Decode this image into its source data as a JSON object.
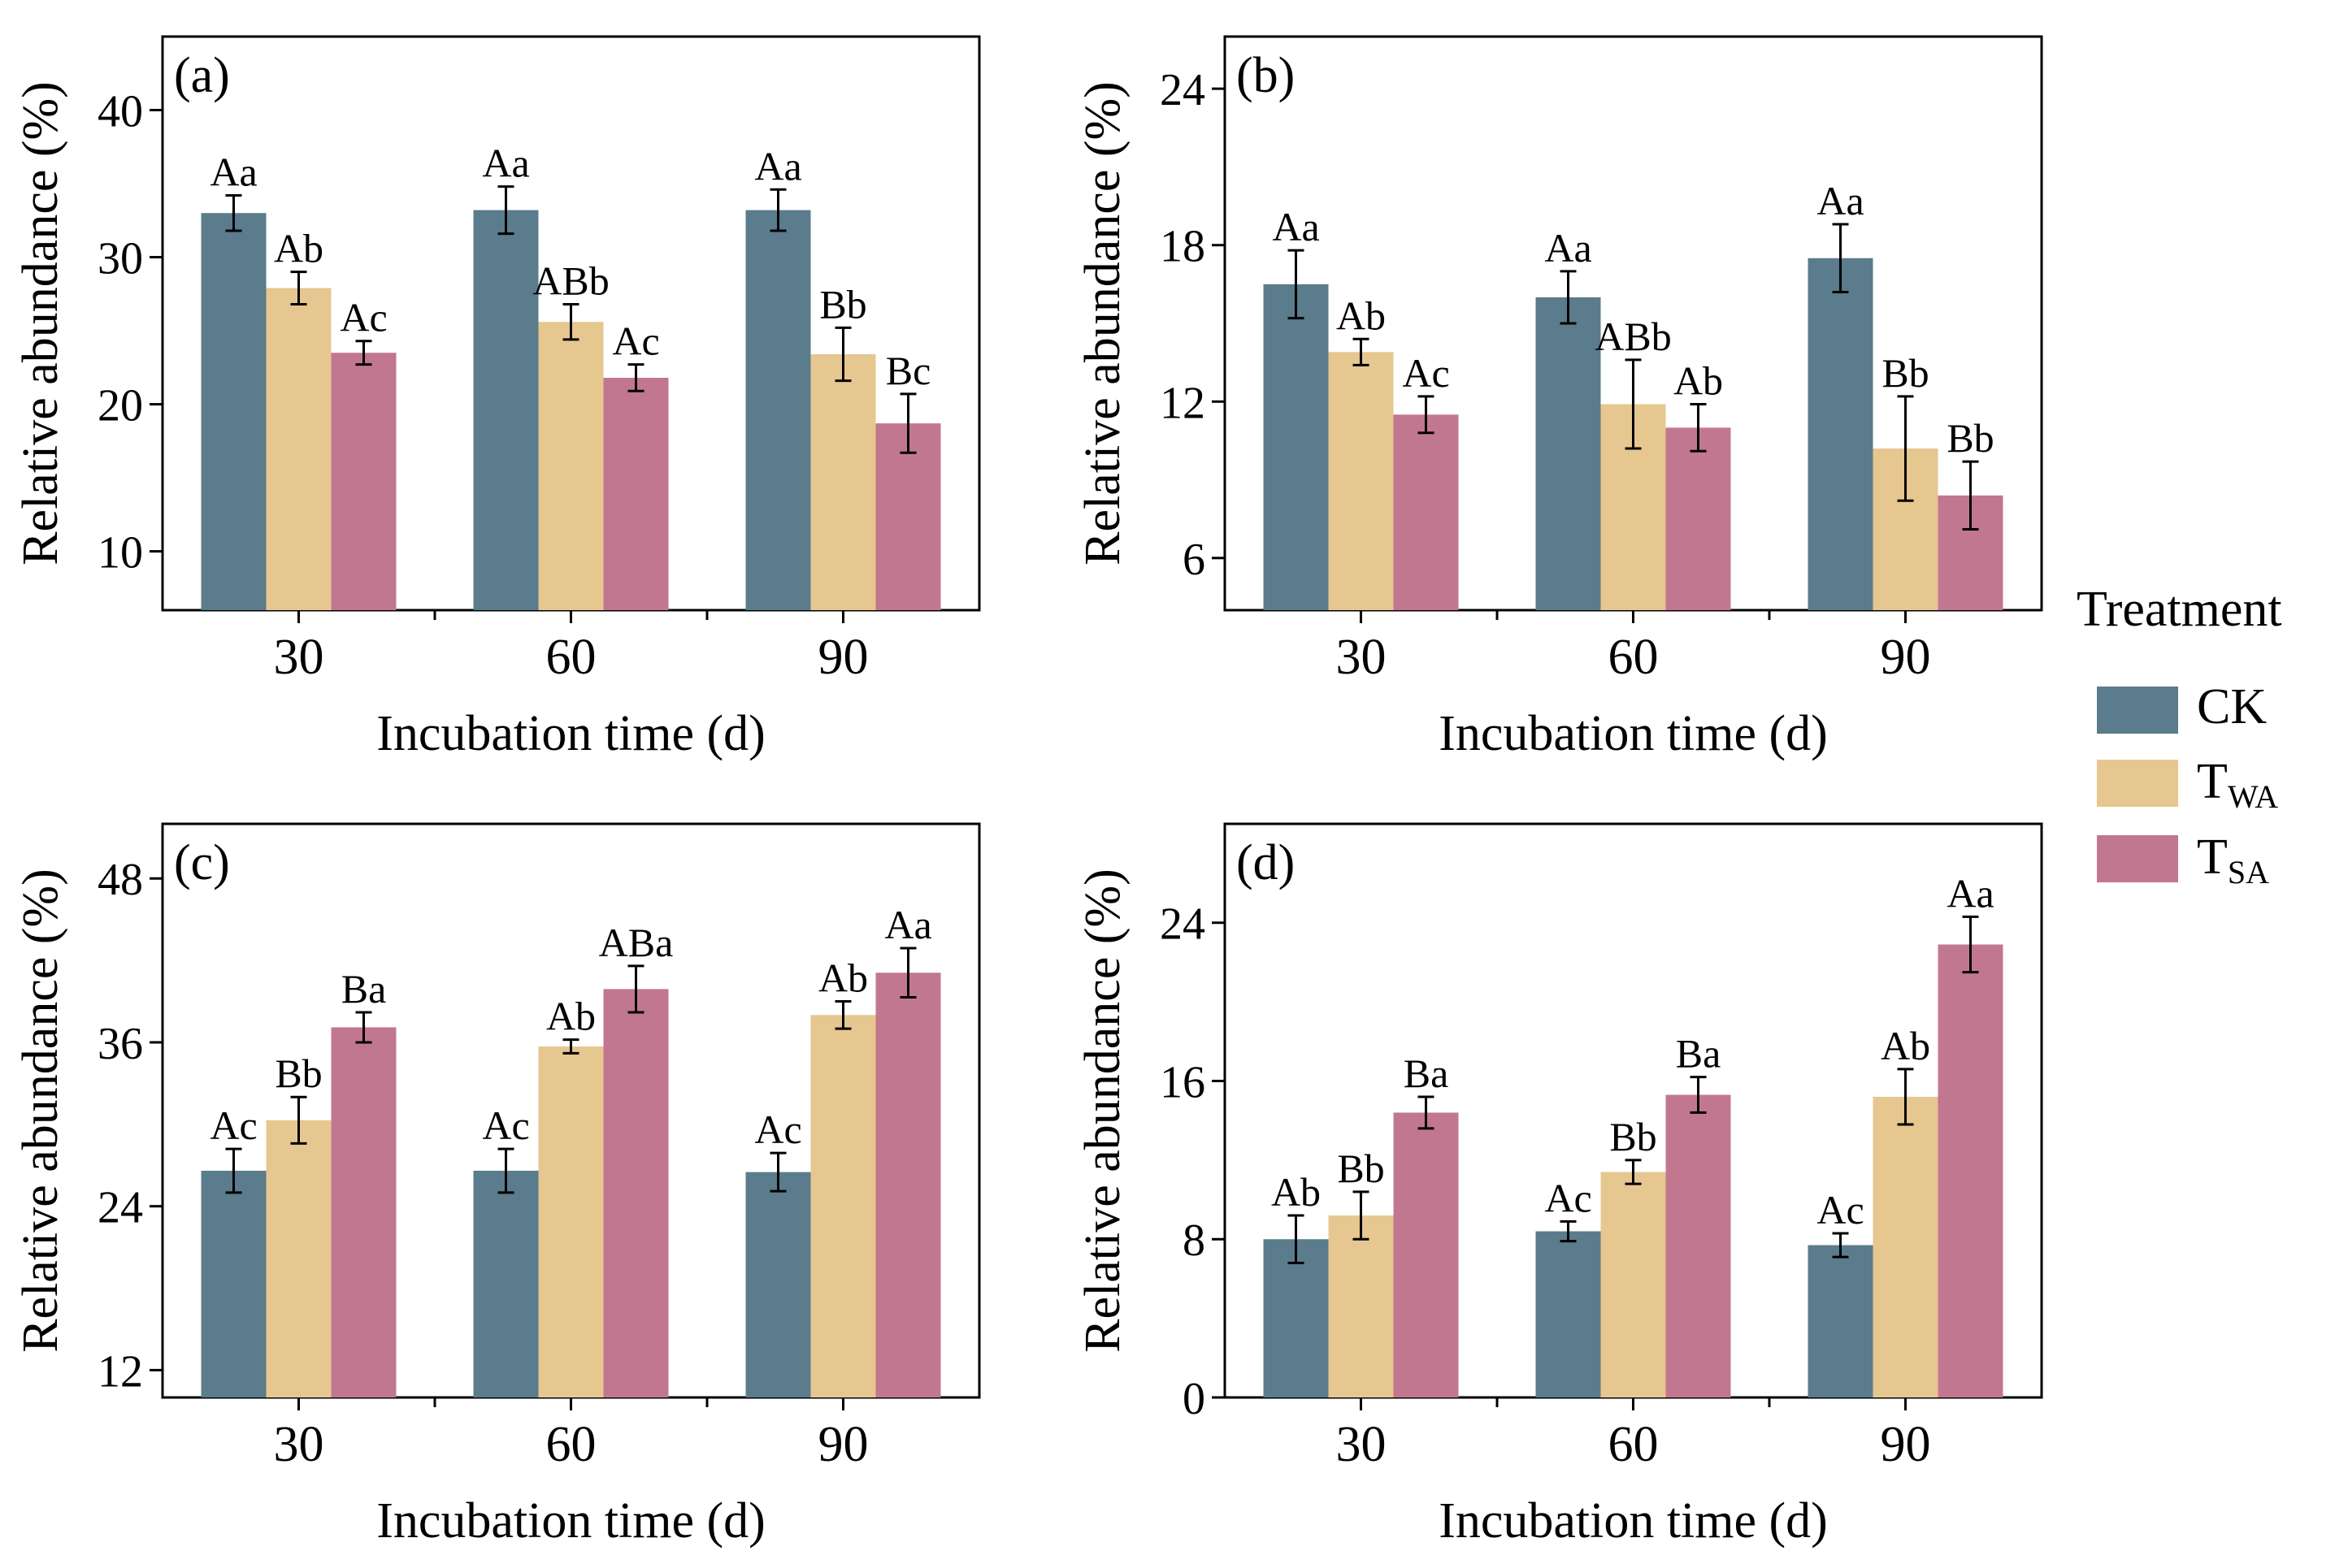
{
  "colors": {
    "CK": "#5a7c8c",
    "TWA": "#e6c790",
    "TSA": "#c27790",
    "axis": "#000000"
  },
  "legend": {
    "title": "Treatment",
    "items": [
      {
        "key": "CK",
        "main": "CK",
        "sub": ""
      },
      {
        "key": "TWA",
        "main": "T",
        "sub": "WA"
      },
      {
        "key": "TSA",
        "main": "T",
        "sub": "SA"
      }
    ]
  },
  "chart_data": [
    {
      "type": "bar",
      "panel_label": "(a)",
      "xlabel": "Incubation time (d)",
      "ylabel": "Relative abundance (%)",
      "categories": [
        "30",
        "60",
        "90"
      ],
      "ylim": [
        6,
        45
      ],
      "yticks": [
        10,
        20,
        30,
        40
      ],
      "series": [
        {
          "name": "CK",
          "values": [
            33.0,
            33.2,
            33.2
          ],
          "errors": [
            1.2,
            1.6,
            1.4
          ],
          "labels": [
            "Aa",
            "Aa",
            "Aa"
          ]
        },
        {
          "name": "TWA",
          "values": [
            27.9,
            25.6,
            23.4
          ],
          "errors": [
            1.1,
            1.2,
            1.8
          ],
          "labels": [
            "Ab",
            "ABb",
            "Bb"
          ]
        },
        {
          "name": "TSA",
          "values": [
            23.5,
            21.8,
            18.7
          ],
          "errors": [
            0.8,
            0.9,
            2.0
          ],
          "labels": [
            "Ac",
            "Ac",
            "Bc"
          ]
        }
      ]
    },
    {
      "type": "bar",
      "panel_label": "(b)",
      "xlabel": "Incubation time (d)",
      "ylabel": "Relative abundance (%)",
      "categories": [
        "30",
        "60",
        "90"
      ],
      "ylim": [
        4,
        26
      ],
      "yticks": [
        6,
        12,
        18,
        24
      ],
      "series": [
        {
          "name": "CK",
          "values": [
            16.5,
            16.0,
            17.5
          ],
          "errors": [
            1.3,
            1.0,
            1.3
          ],
          "labels": [
            "Aa",
            "Aa",
            "Aa"
          ]
        },
        {
          "name": "TWA",
          "values": [
            13.9,
            11.9,
            10.2
          ],
          "errors": [
            0.5,
            1.7,
            2.0
          ],
          "labels": [
            "Ab",
            "ABb",
            "Bb"
          ]
        },
        {
          "name": "TSA",
          "values": [
            11.5,
            11.0,
            8.4
          ],
          "errors": [
            0.7,
            0.9,
            1.3
          ],
          "labels": [
            "Ac",
            "Ab",
            "Bb"
          ]
        }
      ]
    },
    {
      "type": "bar",
      "panel_label": "(c)",
      "xlabel": "Incubation time (d)",
      "ylabel": "Relative abundance (%)",
      "categories": [
        "30",
        "60",
        "90"
      ],
      "ylim": [
        10,
        52
      ],
      "yticks": [
        12,
        24,
        36,
        48
      ],
      "series": [
        {
          "name": "CK",
          "values": [
            26.6,
            26.6,
            26.5
          ],
          "errors": [
            1.6,
            1.6,
            1.4
          ],
          "labels": [
            "Ac",
            "Ac",
            "Ac"
          ]
        },
        {
          "name": "TWA",
          "values": [
            30.3,
            35.7,
            38.0
          ],
          "errors": [
            1.7,
            0.5,
            1.0
          ],
          "labels": [
            "Bb",
            "Ab",
            "Ab"
          ]
        },
        {
          "name": "TSA",
          "values": [
            37.1,
            39.9,
            41.1
          ],
          "errors": [
            1.1,
            1.7,
            1.8
          ],
          "labels": [
            "Ba",
            "ABa",
            "Aa"
          ]
        }
      ]
    },
    {
      "type": "bar",
      "panel_label": "(d)",
      "xlabel": "Incubation time (d)",
      "ylabel": "Relative abundance (%)",
      "categories": [
        "30",
        "60",
        "90"
      ],
      "ylim": [
        0,
        29
      ],
      "yticks": [
        0,
        8,
        16,
        24
      ],
      "series": [
        {
          "name": "CK",
          "values": [
            8.0,
            8.4,
            7.7
          ],
          "errors": [
            1.2,
            0.5,
            0.6
          ],
          "labels": [
            "Ab",
            "Ac",
            "Ac"
          ]
        },
        {
          "name": "TWA",
          "values": [
            9.2,
            11.4,
            15.2
          ],
          "errors": [
            1.2,
            0.6,
            1.4
          ],
          "labels": [
            "Bb",
            "Bb",
            "Ab"
          ]
        },
        {
          "name": "TSA",
          "values": [
            14.4,
            15.3,
            22.9
          ],
          "errors": [
            0.8,
            0.9,
            1.4
          ],
          "labels": [
            "Ba",
            "Ba",
            "Aa"
          ]
        }
      ]
    }
  ]
}
